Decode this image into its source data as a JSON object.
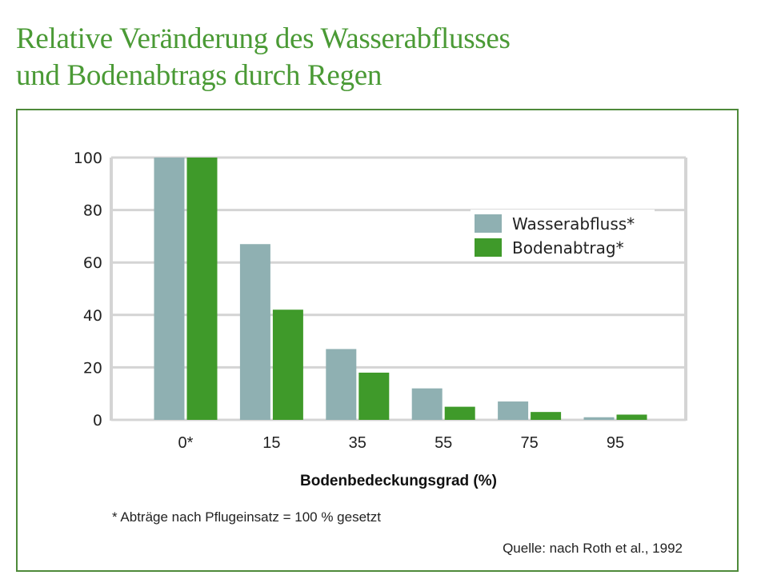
{
  "title_line1": "Relative Veränderung des Wasserabflusses",
  "title_line2": "und Bodenabtrags durch Regen",
  "chart_data": {
    "type": "bar",
    "categories": [
      "0*",
      "15",
      "35",
      "55",
      "75",
      "95"
    ],
    "series": [
      {
        "name": "Wasserabfluss*",
        "color": "#8fb0b2",
        "values": [
          100,
          67,
          27,
          12,
          7,
          1
        ]
      },
      {
        "name": "Bodenabtrag*",
        "color": "#3f9a2a",
        "values": [
          100,
          42,
          18,
          5,
          3,
          2
        ]
      }
    ],
    "xlabel": "Bodenbedeckungsgrad (%)",
    "ylabel": "",
    "ylim": [
      0,
      100
    ],
    "yticks": [
      "0",
      "20",
      "40",
      "60",
      "80",
      "100"
    ],
    "grid": true,
    "legend_position": "top-right"
  },
  "footnote": "* Abträge nach Pflugeinsatz = 100 % gesetzt",
  "source": "Quelle: nach Roth et al., 1992",
  "colors": {
    "title": "#4a9a35",
    "frame": "#4e8a3a",
    "grid": "#d4d4d4"
  }
}
